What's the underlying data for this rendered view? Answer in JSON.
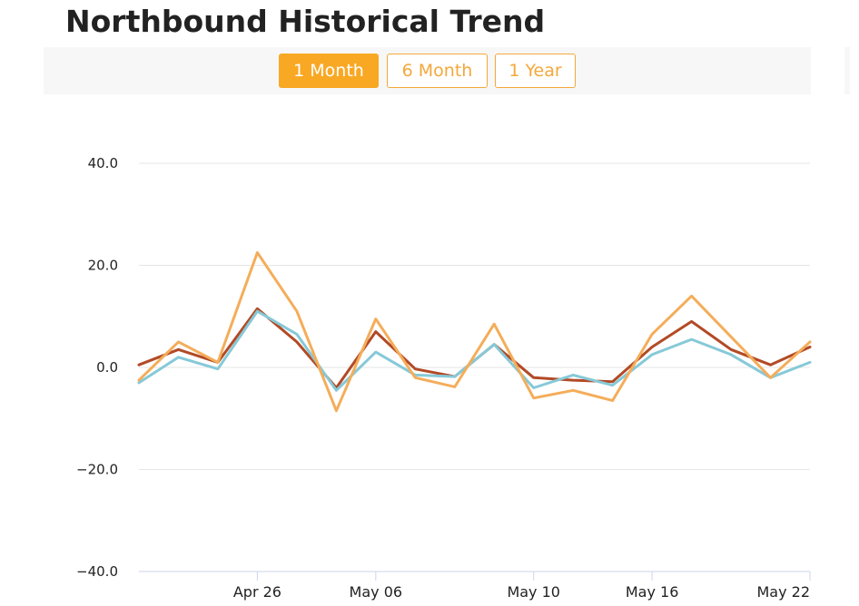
{
  "title": "Northbound Historical Trend",
  "tabs": [
    {
      "label": "1 Month",
      "active": true
    },
    {
      "label": "6 Month",
      "active": false
    },
    {
      "label": "1 Year",
      "active": false
    }
  ],
  "colors": {
    "accent": "#f9a824",
    "series_dark": "#b24a26",
    "series_blue": "#86c9d8",
    "series_orange": "#f4ad5a",
    "grid": "#e6e6e6"
  },
  "chart_data": {
    "type": "line",
    "x_tick_labels": [
      "Apr 26",
      "May 06",
      "May 10",
      "May 16",
      "May 22"
    ],
    "y_tick_labels": [
      "40.0",
      "20.0",
      "0.0",
      "−20.0",
      "−40.0"
    ],
    "ylim": [
      -40,
      40
    ],
    "grid": true,
    "legend": "none",
    "series": [
      {
        "color": "#b24a26",
        "values": [
          0.5,
          3.5,
          1.0,
          11.5,
          5.0,
          -4.0,
          7.0,
          -0.3,
          -1.8,
          4.5,
          -2.0,
          -2.5,
          -2.8,
          4.0,
          9.0,
          3.5,
          0.5,
          4.0
        ]
      },
      {
        "color": "#86c9d8",
        "values": [
          -3.0,
          2.0,
          -0.3,
          11.0,
          6.5,
          -4.5,
          3.0,
          -1.5,
          -1.8,
          4.5,
          -4.0,
          -1.5,
          -3.5,
          2.5,
          5.5,
          2.5,
          -2.0,
          1.0
        ]
      },
      {
        "color": "#f4ad5a",
        "values": [
          -2.5,
          5.0,
          1.0,
          22.5,
          11.0,
          -8.5,
          9.5,
          -2.0,
          -3.8,
          8.5,
          -6.0,
          -4.5,
          -6.5,
          6.5,
          14.0,
          6.0,
          -2.0,
          5.0
        ]
      }
    ]
  }
}
